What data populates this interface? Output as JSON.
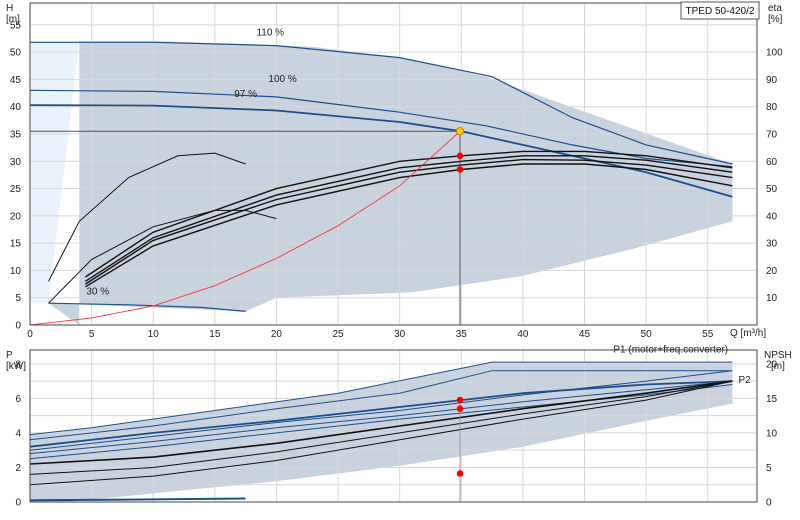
{
  "chart_data": [
    {
      "type": "line",
      "panel": "upper",
      "title": "TPED 50-420/2",
      "x_axis": {
        "label": "Q [m³/h]",
        "range": [
          0,
          59
        ],
        "ticks": [
          0,
          5,
          10,
          15,
          20,
          25,
          30,
          35,
          40,
          45,
          50,
          55
        ]
      },
      "y_left": {
        "label_line1": "H",
        "label_line2": "[m]",
        "range": [
          0,
          59
        ],
        "ticks": [
          0,
          5,
          10,
          15,
          20,
          25,
          30,
          35,
          40,
          45,
          50,
          55
        ]
      },
      "y_right": {
        "label_line1": "eta",
        "label_line2": "[%]",
        "range": [
          0,
          118
        ],
        "ticks": [
          10,
          20,
          30,
          40,
          50,
          60,
          70,
          80,
          90,
          100
        ]
      },
      "grid": true,
      "colors": {
        "envelope": "#c9d3e0",
        "curve": "#1f4e8c",
        "eta": "#111111",
        "system": "#ff3333",
        "duty_point": "#ffcc00",
        "marker": "#ff0000",
        "light_region": "#eaf2fb"
      },
      "speed_labels": [
        {
          "text": "110 %",
          "at": [
            19.5,
            53
          ]
        },
        {
          "text": "100 %",
          "at": [
            20.5,
            44.5
          ]
        },
        {
          "text": "97 %",
          "at": [
            17.5,
            41.8
          ]
        },
        {
          "text": "30 %",
          "at": [
            5.5,
            5.6
          ]
        }
      ],
      "envelope": [
        [
          4,
          0
        ],
        [
          4,
          52
        ],
        [
          11,
          52
        ],
        [
          23,
          51
        ],
        [
          30,
          49
        ],
        [
          37,
          45.5
        ],
        [
          57,
          29.5
        ],
        [
          57,
          19
        ],
        [
          49,
          14
        ],
        [
          40,
          9
        ],
        [
          31,
          6
        ],
        [
          20,
          5
        ],
        [
          17.5,
          2.5
        ],
        [
          1.5,
          4
        ]
      ],
      "light_region": [
        [
          0,
          0
        ],
        [
          0,
          52
        ],
        [
          4,
          52
        ],
        [
          1.5,
          4
        ],
        [
          0,
          4
        ]
      ],
      "series": [
        {
          "name": "110 %",
          "role": "H",
          "points": [
            [
              0,
              51.8
            ],
            [
              10,
              51.8
            ],
            [
              20,
              51.2
            ],
            [
              30,
              49
            ],
            [
              37.5,
              45.5
            ],
            [
              44,
              38
            ],
            [
              50,
              33
            ],
            [
              57,
              29.5
            ]
          ]
        },
        {
          "name": "100 %",
          "role": "H",
          "points": [
            [
              0,
              43
            ],
            [
              10,
              42.8
            ],
            [
              20,
              41.8
            ],
            [
              30,
              39
            ],
            [
              37,
              36.5
            ],
            [
              44,
              33
            ],
            [
              50,
              30.5
            ],
            [
              57,
              29
            ]
          ]
        },
        {
          "name": "97 %",
          "role": "H",
          "points": [
            [
              0,
              40.3
            ],
            [
              10,
              40.2
            ],
            [
              20,
              39.3
            ],
            [
              30,
              37.2
            ],
            [
              35,
              35.5
            ],
            [
              40,
              33
            ],
            [
              45,
              30.5
            ],
            [
              50,
              28
            ],
            [
              57,
              23.5
            ]
          ]
        },
        {
          "name": "30 %",
          "role": "H",
          "points": [
            [
              1.5,
              4
            ],
            [
              8,
              3.7
            ],
            [
              14,
              3.2
            ],
            [
              17.5,
              2.5
            ]
          ]
        },
        {
          "role": "eta",
          "points": [
            [
              1.5,
              8
            ],
            [
              4,
              19
            ],
            [
              8,
              27
            ],
            [
              12,
              31
            ],
            [
              15,
              31.5
            ],
            [
              17.5,
              29.5
            ]
          ]
        },
        {
          "role": "eta",
          "points": [
            [
              1.5,
              4
            ],
            [
              5,
              12
            ],
            [
              10,
              18
            ],
            [
              15,
              21
            ],
            [
              17.5,
              21
            ],
            [
              20,
              19.5
            ]
          ]
        },
        {
          "role": "eta",
          "points": [
            [
              4.5,
              7
            ],
            [
              10,
              14.5
            ],
            [
              20,
              22
            ],
            [
              30,
              27
            ],
            [
              35,
              28.5
            ],
            [
              40,
              29.5
            ],
            [
              45,
              29.5
            ],
            [
              50,
              28.5
            ],
            [
              57,
              25.5
            ]
          ]
        },
        {
          "role": "eta",
          "points": [
            [
              4.5,
              7.5
            ],
            [
              10,
              15.5
            ],
            [
              20,
              23
            ],
            [
              30,
              28
            ],
            [
              35,
              29.3
            ],
            [
              40,
              30.3
            ],
            [
              45,
              30.2
            ],
            [
              50,
              29.3
            ],
            [
              57,
              27
            ]
          ]
        },
        {
          "role": "eta",
          "points": [
            [
              4.5,
              8
            ],
            [
              10,
              16
            ],
            [
              20,
              23.8
            ],
            [
              30,
              28.8
            ],
            [
              35,
              30
            ],
            [
              40,
              31
            ],
            [
              45,
              31
            ],
            [
              50,
              30.2
            ],
            [
              57,
              28
            ]
          ]
        },
        {
          "role": "eta",
          "points": [
            [
              4.5,
              8.8
            ],
            [
              10,
              17
            ],
            [
              20,
              25
            ],
            [
              30,
              30
            ],
            [
              35,
              31
            ],
            [
              40,
              31.8
            ],
            [
              45,
              31.8
            ],
            [
              50,
              31
            ],
            [
              57,
              28.8
            ]
          ]
        },
        {
          "role": "system",
          "points": [
            [
              0,
              0
            ],
            [
              5,
              1.3
            ],
            [
              10,
              3.5
            ],
            [
              15,
              7.2
            ],
            [
              20,
              12.2
            ],
            [
              25,
              18.2
            ],
            [
              30,
              25.5
            ],
            [
              34.9,
              35.5
            ]
          ]
        }
      ],
      "duty_point": {
        "q": 34.9,
        "h": 35.5
      },
      "eta_markers": [
        {
          "q": 34.9,
          "v": 31
        },
        {
          "q": 34.9,
          "v": 28.5
        }
      ],
      "guide_lines": {
        "h": 35.5,
        "q": 34.9
      }
    },
    {
      "type": "line",
      "panel": "lower",
      "y_left": {
        "label_line1": "P",
        "label_line2": "[kW]",
        "range": [
          0,
          8.8
        ],
        "ticks": [
          0,
          2,
          4,
          6,
          8
        ]
      },
      "y_right": {
        "label_line1": "NPSH",
        "label_line2": "[m]",
        "range": [
          0,
          22
        ],
        "ticks": [
          0,
          5,
          10,
          15,
          20
        ]
      },
      "x_range": [
        0,
        59
      ],
      "grid": true,
      "labels": [
        {
          "text": "P1 (motor+freq.converter)",
          "at": [
            52,
            8.65
          ]
        },
        {
          "text": "P2",
          "at": [
            57.5,
            6.9
          ]
        }
      ],
      "envelope": [
        [
          0,
          0
        ],
        [
          0,
          3.9
        ],
        [
          5,
          4.3
        ],
        [
          15,
          5.3
        ],
        [
          25,
          6.3
        ],
        [
          37.5,
          8.1
        ],
        [
          57,
          8.1
        ],
        [
          57,
          5.7
        ],
        [
          50,
          4.7
        ],
        [
          40,
          3.2
        ],
        [
          30,
          2.1
        ],
        [
          20,
          1.2
        ],
        [
          10,
          0.5
        ],
        [
          5,
          0.15
        ],
        [
          3,
          0
        ]
      ],
      "light_region": [
        [
          0,
          0
        ],
        [
          0,
          0.2
        ],
        [
          3,
          0
        ]
      ],
      "series": [
        {
          "role": "P1",
          "points": [
            [
              0,
              3.9
            ],
            [
              5,
              4.3
            ],
            [
              15,
              5.3
            ],
            [
              25,
              6.3
            ],
            [
              37.5,
              8.1
            ],
            [
              57,
              8.1
            ]
          ]
        },
        {
          "role": "P1",
          "points": [
            [
              0,
              3.6
            ],
            [
              10,
              4.4
            ],
            [
              20,
              5.4
            ],
            [
              30,
              6.3
            ],
            [
              37.5,
              7.6
            ],
            [
              57,
              7.6
            ]
          ]
        },
        {
          "role": "P1",
          "points": [
            [
              0,
              3
            ],
            [
              10,
              3.8
            ],
            [
              20,
              4.6
            ],
            [
              30,
              5.3
            ],
            [
              40,
              6.2
            ],
            [
              50,
              7
            ],
            [
              57,
              7.6
            ]
          ]
        },
        {
          "role": "P2",
          "points": [
            [
              0,
              3.2
            ],
            [
              10,
              4
            ],
            [
              20,
              4.7
            ],
            [
              30,
              5.5
            ],
            [
              40,
              6.3
            ],
            [
              50,
              6.8
            ],
            [
              57,
              7
            ]
          ]
        },
        {
          "role": "P2",
          "points": [
            [
              0,
              2.8
            ],
            [
              10,
              3.5
            ],
            [
              20,
              4.3
            ],
            [
              30,
              5
            ],
            [
              40,
              5.8
            ],
            [
              50,
              6.5
            ],
            [
              57,
              7
            ]
          ]
        },
        {
          "role": "P2",
          "points": [
            [
              0,
              2.5
            ],
            [
              10,
              3.2
            ],
            [
              20,
              4
            ],
            [
              30,
              4.8
            ],
            [
              40,
              5.5
            ],
            [
              50,
              6.2
            ],
            [
              57,
              6.8
            ]
          ]
        },
        {
          "role": "NPSH",
          "points": [
            [
              0,
              2.2
            ],
            [
              10,
              2.6
            ],
            [
              20,
              3.4
            ],
            [
              30,
              4.4
            ],
            [
              40,
              5.4
            ],
            [
              50,
              6.3
            ],
            [
              57,
              7
            ]
          ]
        },
        {
          "role": "NPSH",
          "points": [
            [
              0,
              1.6
            ],
            [
              10,
              2
            ],
            [
              20,
              2.9
            ],
            [
              30,
              4
            ],
            [
              40,
              5.1
            ],
            [
              50,
              6.1
            ],
            [
              57,
              7
            ]
          ]
        },
        {
          "role": "NPSH",
          "points": [
            [
              0,
              1
            ],
            [
              10,
              1.5
            ],
            [
              20,
              2.4
            ],
            [
              30,
              3.6
            ],
            [
              40,
              4.8
            ],
            [
              50,
              5.9
            ],
            [
              57,
              7
            ]
          ]
        },
        {
          "role": "P30",
          "points": [
            [
              0,
              0.1
            ],
            [
              10,
              0.15
            ],
            [
              17.5,
              0.2
            ]
          ]
        }
      ],
      "markers": [
        {
          "q": 34.9,
          "p": 5.9
        },
        {
          "q": 34.9,
          "p": 5.4
        },
        {
          "q": 34.9,
          "p": 1.65
        }
      ],
      "guide_q": 34.9
    }
  ]
}
